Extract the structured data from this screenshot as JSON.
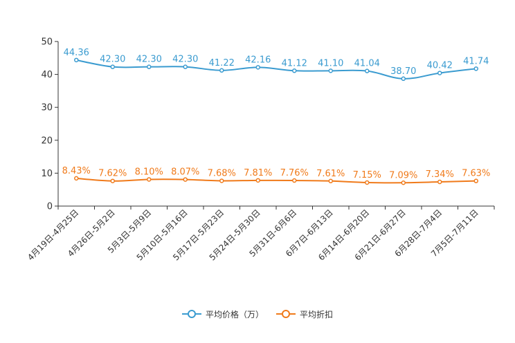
{
  "chart_data": {
    "type": "line",
    "categories": [
      "4月19日-4月25日",
      "4月26日-5月2日",
      "5月3日-5月9日",
      "5月10日-5月16日",
      "5月17日-5月23日",
      "5月24日-5月30日",
      "5月31日-6月6日",
      "6月7日-6月13日",
      "6月14日-6月20日",
      "6月21日-6月27日",
      "6月28日-7月4日",
      "7月5日-7月11日"
    ],
    "ylim": [
      0,
      50
    ],
    "yticks": [
      "0",
      "10",
      "20",
      "30",
      "40",
      "50"
    ],
    "series": [
      {
        "name": "平均价格（万）",
        "color": "#3a9bd0",
        "values": [
          44.36,
          42.3,
          42.3,
          42.3,
          41.22,
          42.16,
          41.12,
          41.1,
          41.04,
          38.7,
          40.42,
          41.74
        ],
        "labels": [
          "44.36",
          "42.30",
          "42.30",
          "42.30",
          "41.22",
          "42.16",
          "41.12",
          "41.10",
          "41.04",
          "38.70",
          "40.42",
          "41.74"
        ]
      },
      {
        "name": "平均折扣",
        "color": "#f07a1a",
        "values": [
          8.43,
          7.62,
          8.1,
          8.07,
          7.68,
          7.81,
          7.76,
          7.61,
          7.15,
          7.09,
          7.34,
          7.63
        ],
        "labels": [
          "8.43%",
          "7.62%",
          "8.10%",
          "8.07%",
          "7.68%",
          "7.81%",
          "7.76%",
          "7.61%",
          "7.15%",
          "7.09%",
          "7.34%",
          "7.63%"
        ]
      }
    ]
  }
}
